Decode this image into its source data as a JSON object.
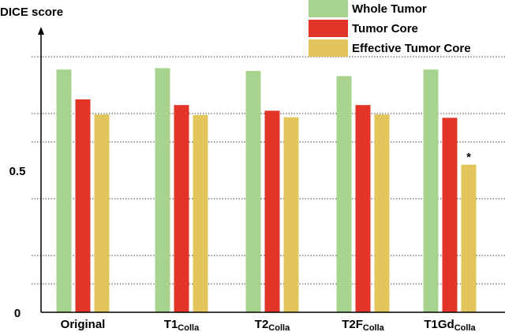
{
  "chart_data": {
    "type": "bar",
    "ylabel": "DICE score",
    "ylim": [
      0,
      1.0
    ],
    "yticks": [
      {
        "value": 0,
        "label": "0"
      },
      {
        "value": 0.5,
        "label": "0.5"
      }
    ],
    "gridlines": [
      0.1,
      0.2,
      0.4,
      0.6,
      0.7,
      0.9
    ],
    "grid": "dotted horizontal",
    "legend_position": "top-right",
    "categories": [
      {
        "base": "Original",
        "sub": ""
      },
      {
        "base": "T1",
        "sub": "Colla"
      },
      {
        "base": "T2",
        "sub": "Colla"
      },
      {
        "base": "T2F",
        "sub": "Colla"
      },
      {
        "base": "T1Gd",
        "sub": "Colla"
      }
    ],
    "series": [
      {
        "name": "Whole Tumor",
        "color": "#a8d38f",
        "values": [
          0.855,
          0.86,
          0.85,
          0.832,
          0.855
        ]
      },
      {
        "name": "Tumor Core",
        "color": "#e23427",
        "values": [
          0.75,
          0.73,
          0.71,
          0.73,
          0.685
        ]
      },
      {
        "name": "Effective Tumor Core",
        "color": "#e2c65c",
        "values": [
          0.697,
          0.695,
          0.687,
          0.697,
          0.52
        ]
      }
    ],
    "annotations": [
      {
        "text": "*",
        "category_index": 4,
        "series_index": 2
      }
    ]
  }
}
